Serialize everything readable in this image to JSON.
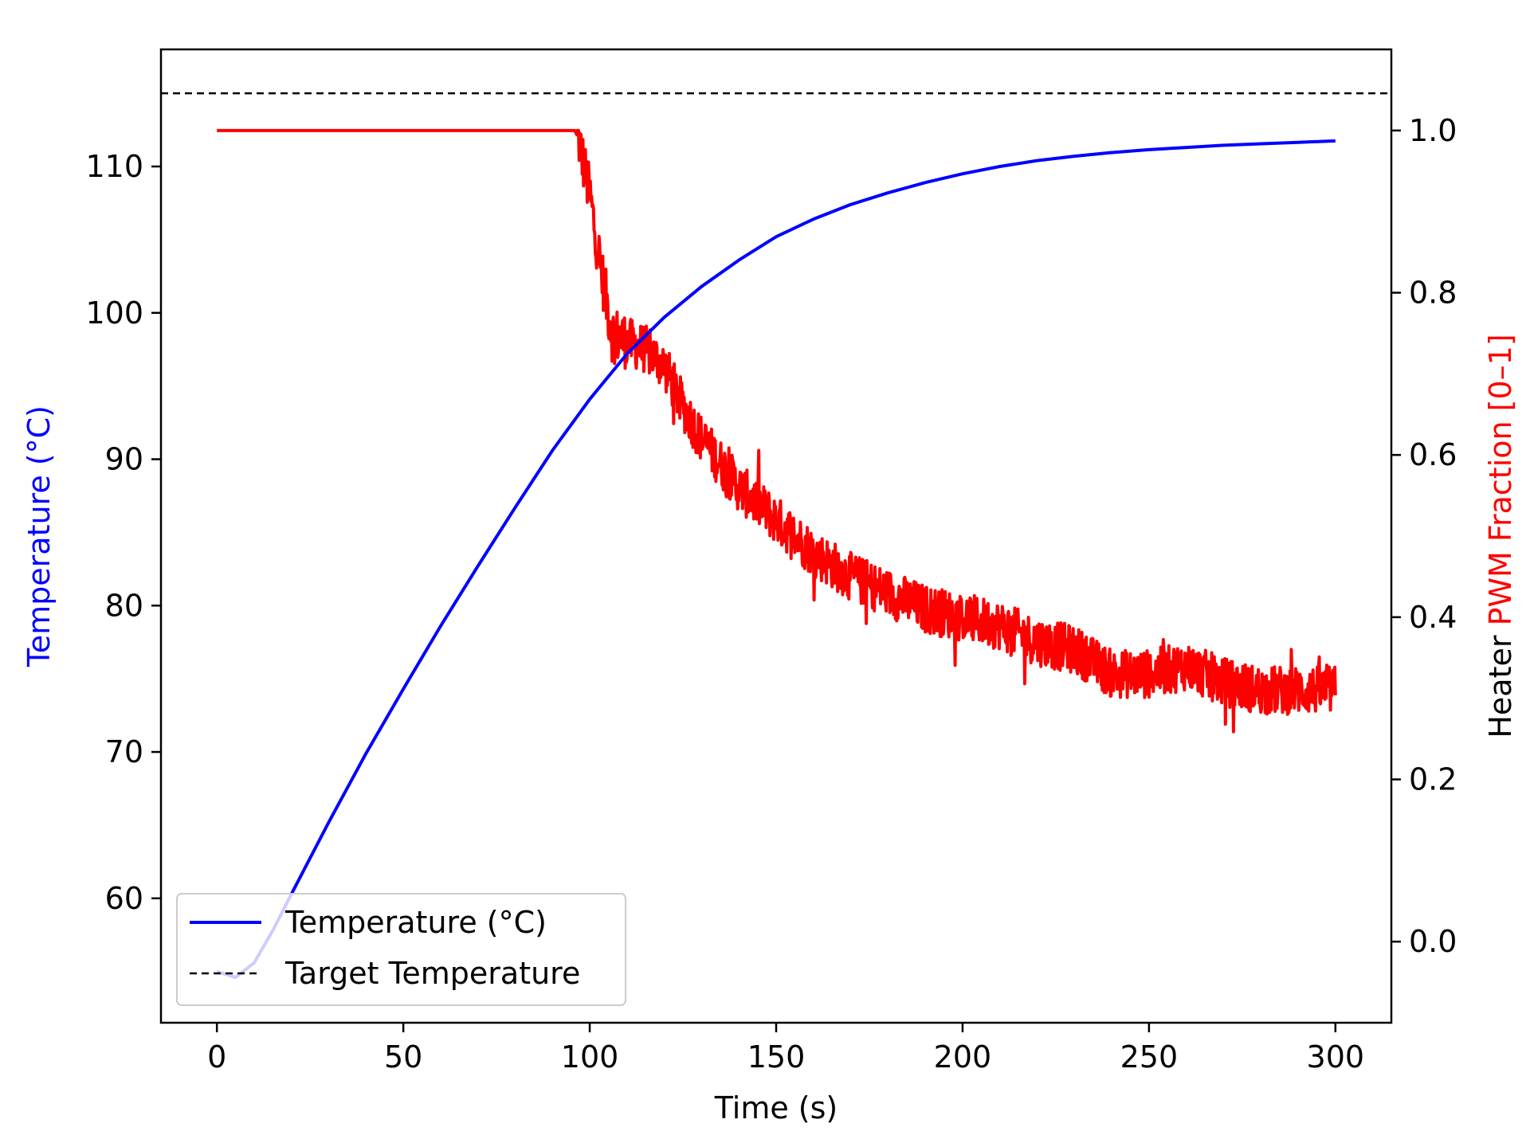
{
  "chart_data": {
    "type": "line",
    "title": "",
    "xlabel": "Time (s)",
    "ylabel_left": "Temperature (°C)",
    "ylabel_right_parts": [
      {
        "text": "Heater ",
        "color": "#000000"
      },
      {
        "text": "PWM Fraction [0–1]",
        "color": "#ff0000"
      }
    ],
    "xlim": [
      -15,
      315
    ],
    "ylim_left": [
      51.5,
      118
    ],
    "ylim_right": [
      -0.1,
      1.1
    ],
    "x_ticks": [
      0,
      50,
      100,
      150,
      200,
      250,
      300
    ],
    "x_tick_labels": [
      "0",
      "50",
      "100",
      "150",
      "200",
      "250",
      "300"
    ],
    "y_left_ticks": [
      60,
      70,
      80,
      90,
      100,
      110
    ],
    "y_left_tick_labels": [
      "60",
      "70",
      "80",
      "90",
      "100",
      "110"
    ],
    "y_right_ticks": [
      0.0,
      0.2,
      0.4,
      0.6,
      0.8,
      1.0
    ],
    "y_right_tick_labels": [
      "0.0",
      "0.2",
      "0.4",
      "0.6",
      "0.8",
      "1.0"
    ],
    "grid": false,
    "legend": {
      "placement": "lower-left",
      "entries": [
        {
          "label": "Temperature (°C)",
          "color": "#0000ff",
          "style": "solid"
        },
        {
          "label": "Target Temperature",
          "color": "#000000",
          "style": "dashed"
        }
      ]
    },
    "series": [
      {
        "name": "Temperature (°C)",
        "axis": "left",
        "color": "#0000ff",
        "style": "solid",
        "x": [
          0,
          5,
          10,
          15,
          20,
          30,
          40,
          50,
          60,
          70,
          80,
          90,
          100,
          110,
          120,
          130,
          140,
          150,
          160,
          170,
          180,
          190,
          200,
          210,
          220,
          230,
          240,
          250,
          260,
          270,
          280,
          290,
          300
        ],
        "values": [
          55,
          54.6,
          55.6,
          57.8,
          60.3,
          65.2,
          69.9,
          74.3,
          78.6,
          82.7,
          86.7,
          90.6,
          94.1,
          97.2,
          99.7,
          101.8,
          103.6,
          105.2,
          106.4,
          107.4,
          108.2,
          108.9,
          109.5,
          110.0,
          110.4,
          110.7,
          110.95,
          111.15,
          111.3,
          111.45,
          111.55,
          111.65,
          111.75
        ]
      },
      {
        "name": "Target Temperature",
        "axis": "left",
        "color": "#000000",
        "style": "dashed",
        "x": [
          -15,
          315
        ],
        "values": [
          115,
          115
        ]
      },
      {
        "name": "",
        "axis": "right",
        "color": "#ff0000",
        "style": "solid",
        "noisy": true,
        "x": [
          0,
          96,
          97,
          100,
          103,
          106,
          110,
          115,
          120,
          125,
          130,
          140,
          150,
          160,
          170,
          180,
          190,
          200,
          210,
          220,
          230,
          240,
          250,
          260,
          270,
          280,
          290,
          300
        ],
        "values": [
          1.0,
          1.0,
          0.99,
          0.92,
          0.83,
          0.75,
          0.74,
          0.73,
          0.71,
          0.66,
          0.62,
          0.56,
          0.52,
          0.48,
          0.45,
          0.43,
          0.41,
          0.4,
          0.39,
          0.37,
          0.36,
          0.33,
          0.33,
          0.34,
          0.32,
          0.31,
          0.31,
          0.31
        ]
      }
    ]
  }
}
